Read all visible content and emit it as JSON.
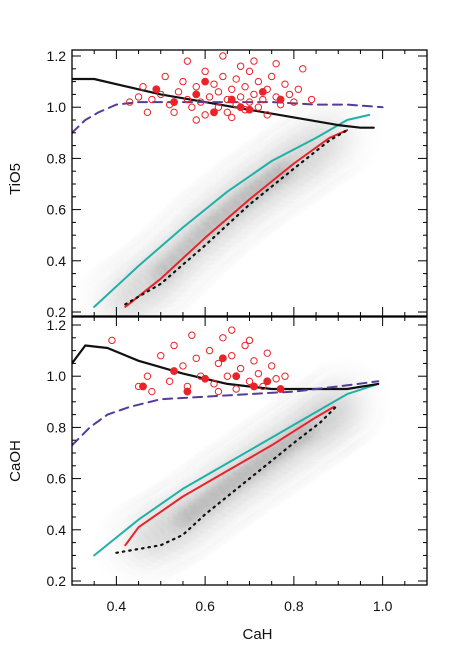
{
  "chart_data": {
    "type": "scatter",
    "shared_xlabel": "CaH",
    "xlim": [
      0.3,
      1.1
    ],
    "xticks": [
      0.4,
      0.6,
      0.8,
      1.0
    ],
    "xtick_labels": [
      "0.4",
      "0.6",
      "0.8",
      "1.0"
    ],
    "colors": {
      "teal": "#20b0a8",
      "red": "#e8242a",
      "black": "#111111",
      "purple": "#553c99",
      "density": "#2a2a2a"
    },
    "panels": [
      {
        "name": "top",
        "ylabel": "TiO5",
        "ylim": [
          0.2,
          1.2
        ],
        "yticks": [
          0.2,
          0.4,
          0.6,
          0.8,
          1.0,
          1.2
        ],
        "ytick_labels": [
          "0.2",
          "0.4",
          "0.6",
          "0.8",
          "1.0",
          "1.2"
        ],
        "density_ridge": [
          [
            0.4,
            0.22
          ],
          [
            0.5,
            0.35
          ],
          [
            0.6,
            0.52
          ],
          [
            0.7,
            0.66
          ],
          [
            0.8,
            0.78
          ],
          [
            0.9,
            0.9
          ]
        ],
        "lines": [
          {
            "color": "teal",
            "style": "solid",
            "x": [
              0.35,
              0.45,
              0.55,
              0.65,
              0.75,
              0.85,
              0.92,
              0.97
            ],
            "y": [
              0.22,
              0.38,
              0.53,
              0.67,
              0.79,
              0.88,
              0.95,
              0.97
            ]
          },
          {
            "color": "red",
            "style": "solid",
            "x": [
              0.42,
              0.5,
              0.6,
              0.7,
              0.8,
              0.88,
              0.92
            ],
            "y": [
              0.22,
              0.33,
              0.49,
              0.64,
              0.78,
              0.88,
              0.91
            ]
          },
          {
            "color": "black",
            "style": "dotted",
            "x": [
              0.42,
              0.5,
              0.6,
              0.7,
              0.8,
              0.88,
              0.92
            ],
            "y": [
              0.23,
              0.31,
              0.46,
              0.62,
              0.76,
              0.87,
              0.91
            ]
          },
          {
            "color": "black",
            "style": "solid",
            "x": [
              0.3,
              0.35,
              0.4,
              0.5,
              0.6,
              0.7,
              0.8,
              0.9,
              0.95,
              0.98
            ],
            "y": [
              1.11,
              1.11,
              1.09,
              1.05,
              1.02,
              0.99,
              0.96,
              0.93,
              0.92,
              0.92
            ]
          },
          {
            "color": "purple",
            "style": "dashed",
            "x": [
              0.3,
              0.33,
              0.36,
              0.4,
              0.45,
              0.55,
              0.65,
              0.75,
              0.85,
              0.92,
              1.0
            ],
            "y": [
              0.9,
              0.95,
              0.98,
              1.01,
              1.02,
              1.02,
              1.02,
              1.02,
              1.01,
              1.01,
              1.0
            ]
          }
        ],
        "points_open": [
          [
            0.46,
            1.08
          ],
          [
            0.47,
            0.98
          ],
          [
            0.48,
            1.03
          ],
          [
            0.5,
            1.05
          ],
          [
            0.51,
            1.12
          ],
          [
            0.52,
            1.01
          ],
          [
            0.53,
            0.98
          ],
          [
            0.54,
            1.06
          ],
          [
            0.55,
            1.1
          ],
          [
            0.56,
            1.03
          ],
          [
            0.57,
            1.0
          ],
          [
            0.58,
            1.08
          ],
          [
            0.59,
            1.02
          ],
          [
            0.6,
            1.14
          ],
          [
            0.6,
            0.97
          ],
          [
            0.61,
            1.04
          ],
          [
            0.62,
            1.09
          ],
          [
            0.63,
            1.0
          ],
          [
            0.63,
            1.06
          ],
          [
            0.64,
            1.12
          ],
          [
            0.65,
            0.98
          ],
          [
            0.65,
            1.03
          ],
          [
            0.66,
            1.07
          ],
          [
            0.67,
            1.01
          ],
          [
            0.67,
            1.11
          ],
          [
            0.68,
            1.04
          ],
          [
            0.69,
            0.99
          ],
          [
            0.69,
            1.08
          ],
          [
            0.7,
            1.02
          ],
          [
            0.7,
            1.14
          ],
          [
            0.71,
            1.05
          ],
          [
            0.72,
            1.0
          ],
          [
            0.72,
            1.1
          ],
          [
            0.73,
            1.03
          ],
          [
            0.74,
            1.07
          ],
          [
            0.74,
            0.97
          ],
          [
            0.75,
            1.12
          ],
          [
            0.76,
            1.04
          ],
          [
            0.77,
            1.01
          ],
          [
            0.78,
            1.09
          ],
          [
            0.79,
            1.05
          ],
          [
            0.8,
            1.02
          ],
          [
            0.81,
            1.07
          ],
          [
            0.82,
            1.15
          ],
          [
            0.84,
            1.03
          ],
          [
            0.56,
            1.18
          ],
          [
            0.64,
            1.2
          ],
          [
            0.71,
            1.18
          ],
          [
            0.58,
            0.95
          ],
          [
            0.66,
            0.96
          ],
          [
            0.45,
            1.04
          ],
          [
            0.43,
            1.02
          ],
          [
            0.76,
            1.17
          ],
          [
            0.68,
            1.16
          ]
        ],
        "points_filled": [
          [
            0.49,
            1.07
          ],
          [
            0.53,
            1.02
          ],
          [
            0.58,
            1.05
          ],
          [
            0.62,
            0.98
          ],
          [
            0.66,
            1.03
          ],
          [
            0.7,
            0.99
          ],
          [
            0.73,
            1.06
          ],
          [
            0.77,
            1.03
          ],
          [
            0.6,
            1.1
          ],
          [
            0.68,
            1.0
          ]
        ]
      },
      {
        "name": "bottom",
        "ylabel": "CaOH",
        "ylim": [
          0.2,
          1.2
        ],
        "yticks": [
          0.2,
          0.4,
          0.6,
          0.8,
          1.0,
          1.2
        ],
        "ytick_labels": [
          "0.2",
          "0.4",
          "0.6",
          "0.8",
          "1.0",
          "1.2"
        ],
        "density_ridge": [
          [
            0.45,
            0.34
          ],
          [
            0.55,
            0.44
          ],
          [
            0.65,
            0.57
          ],
          [
            0.75,
            0.69
          ],
          [
            0.85,
            0.81
          ],
          [
            0.92,
            0.9
          ]
        ],
        "lines": [
          {
            "color": "teal",
            "style": "solid",
            "x": [
              0.35,
              0.45,
              0.55,
              0.65,
              0.75,
              0.85,
              0.92,
              0.99
            ],
            "y": [
              0.3,
              0.44,
              0.56,
              0.66,
              0.76,
              0.86,
              0.93,
              0.97
            ]
          },
          {
            "color": "red",
            "style": "solid",
            "x": [
              0.42,
              0.45,
              0.55,
              0.65,
              0.75,
              0.85,
              0.89
            ],
            "y": [
              0.34,
              0.41,
              0.53,
              0.63,
              0.73,
              0.84,
              0.88
            ]
          },
          {
            "color": "black",
            "style": "dotted",
            "x": [
              0.4,
              0.5,
              0.55,
              0.6,
              0.7,
              0.8,
              0.86,
              0.9
            ],
            "y": [
              0.31,
              0.34,
              0.38,
              0.46,
              0.6,
              0.74,
              0.82,
              0.89
            ]
          },
          {
            "color": "black",
            "style": "solid",
            "x": [
              0.3,
              0.33,
              0.38,
              0.45,
              0.55,
              0.65,
              0.75,
              0.85,
              0.92,
              0.99
            ],
            "y": [
              1.05,
              1.12,
              1.11,
              1.06,
              1.01,
              0.97,
              0.95,
              0.95,
              0.95,
              0.97
            ]
          },
          {
            "color": "purple",
            "style": "dashed",
            "x": [
              0.3,
              0.34,
              0.38,
              0.43,
              0.5,
              0.6,
              0.7,
              0.8,
              0.9,
              0.99
            ],
            "y": [
              0.73,
              0.8,
              0.85,
              0.88,
              0.91,
              0.92,
              0.93,
              0.94,
              0.96,
              0.98
            ]
          }
        ],
        "points_open": [
          [
            0.39,
            1.14
          ],
          [
            0.45,
            0.96
          ],
          [
            0.47,
            1.0
          ],
          [
            0.5,
            1.08
          ],
          [
            0.52,
            0.98
          ],
          [
            0.53,
            1.12
          ],
          [
            0.55,
            1.04
          ],
          [
            0.56,
            0.96
          ],
          [
            0.58,
            1.07
          ],
          [
            0.59,
            1.0
          ],
          [
            0.61,
            1.1
          ],
          [
            0.62,
            0.97
          ],
          [
            0.63,
            1.05
          ],
          [
            0.64,
            1.15
          ],
          [
            0.65,
            1.0
          ],
          [
            0.66,
            1.08
          ],
          [
            0.67,
            0.95
          ],
          [
            0.68,
            1.03
          ],
          [
            0.69,
            1.12
          ],
          [
            0.7,
            0.98
          ],
          [
            0.71,
            1.06
          ],
          [
            0.72,
            1.01
          ],
          [
            0.73,
            0.96
          ],
          [
            0.74,
            1.09
          ],
          [
            0.75,
            1.04
          ],
          [
            0.76,
            0.99
          ],
          [
            0.77,
            0.95
          ],
          [
            0.78,
            1.0
          ],
          [
            0.57,
            1.16
          ],
          [
            0.63,
            0.94
          ],
          [
            0.66,
            1.18
          ],
          [
            0.7,
            1.14
          ],
          [
            0.48,
            0.94
          ]
        ],
        "points_filled": [
          [
            0.46,
            0.96
          ],
          [
            0.53,
            1.02
          ],
          [
            0.56,
            0.94
          ],
          [
            0.6,
            0.99
          ],
          [
            0.64,
            1.07
          ],
          [
            0.67,
            1.0
          ],
          [
            0.71,
            0.96
          ],
          [
            0.74,
            0.98
          ],
          [
            0.77,
            0.95
          ]
        ]
      }
    ]
  }
}
